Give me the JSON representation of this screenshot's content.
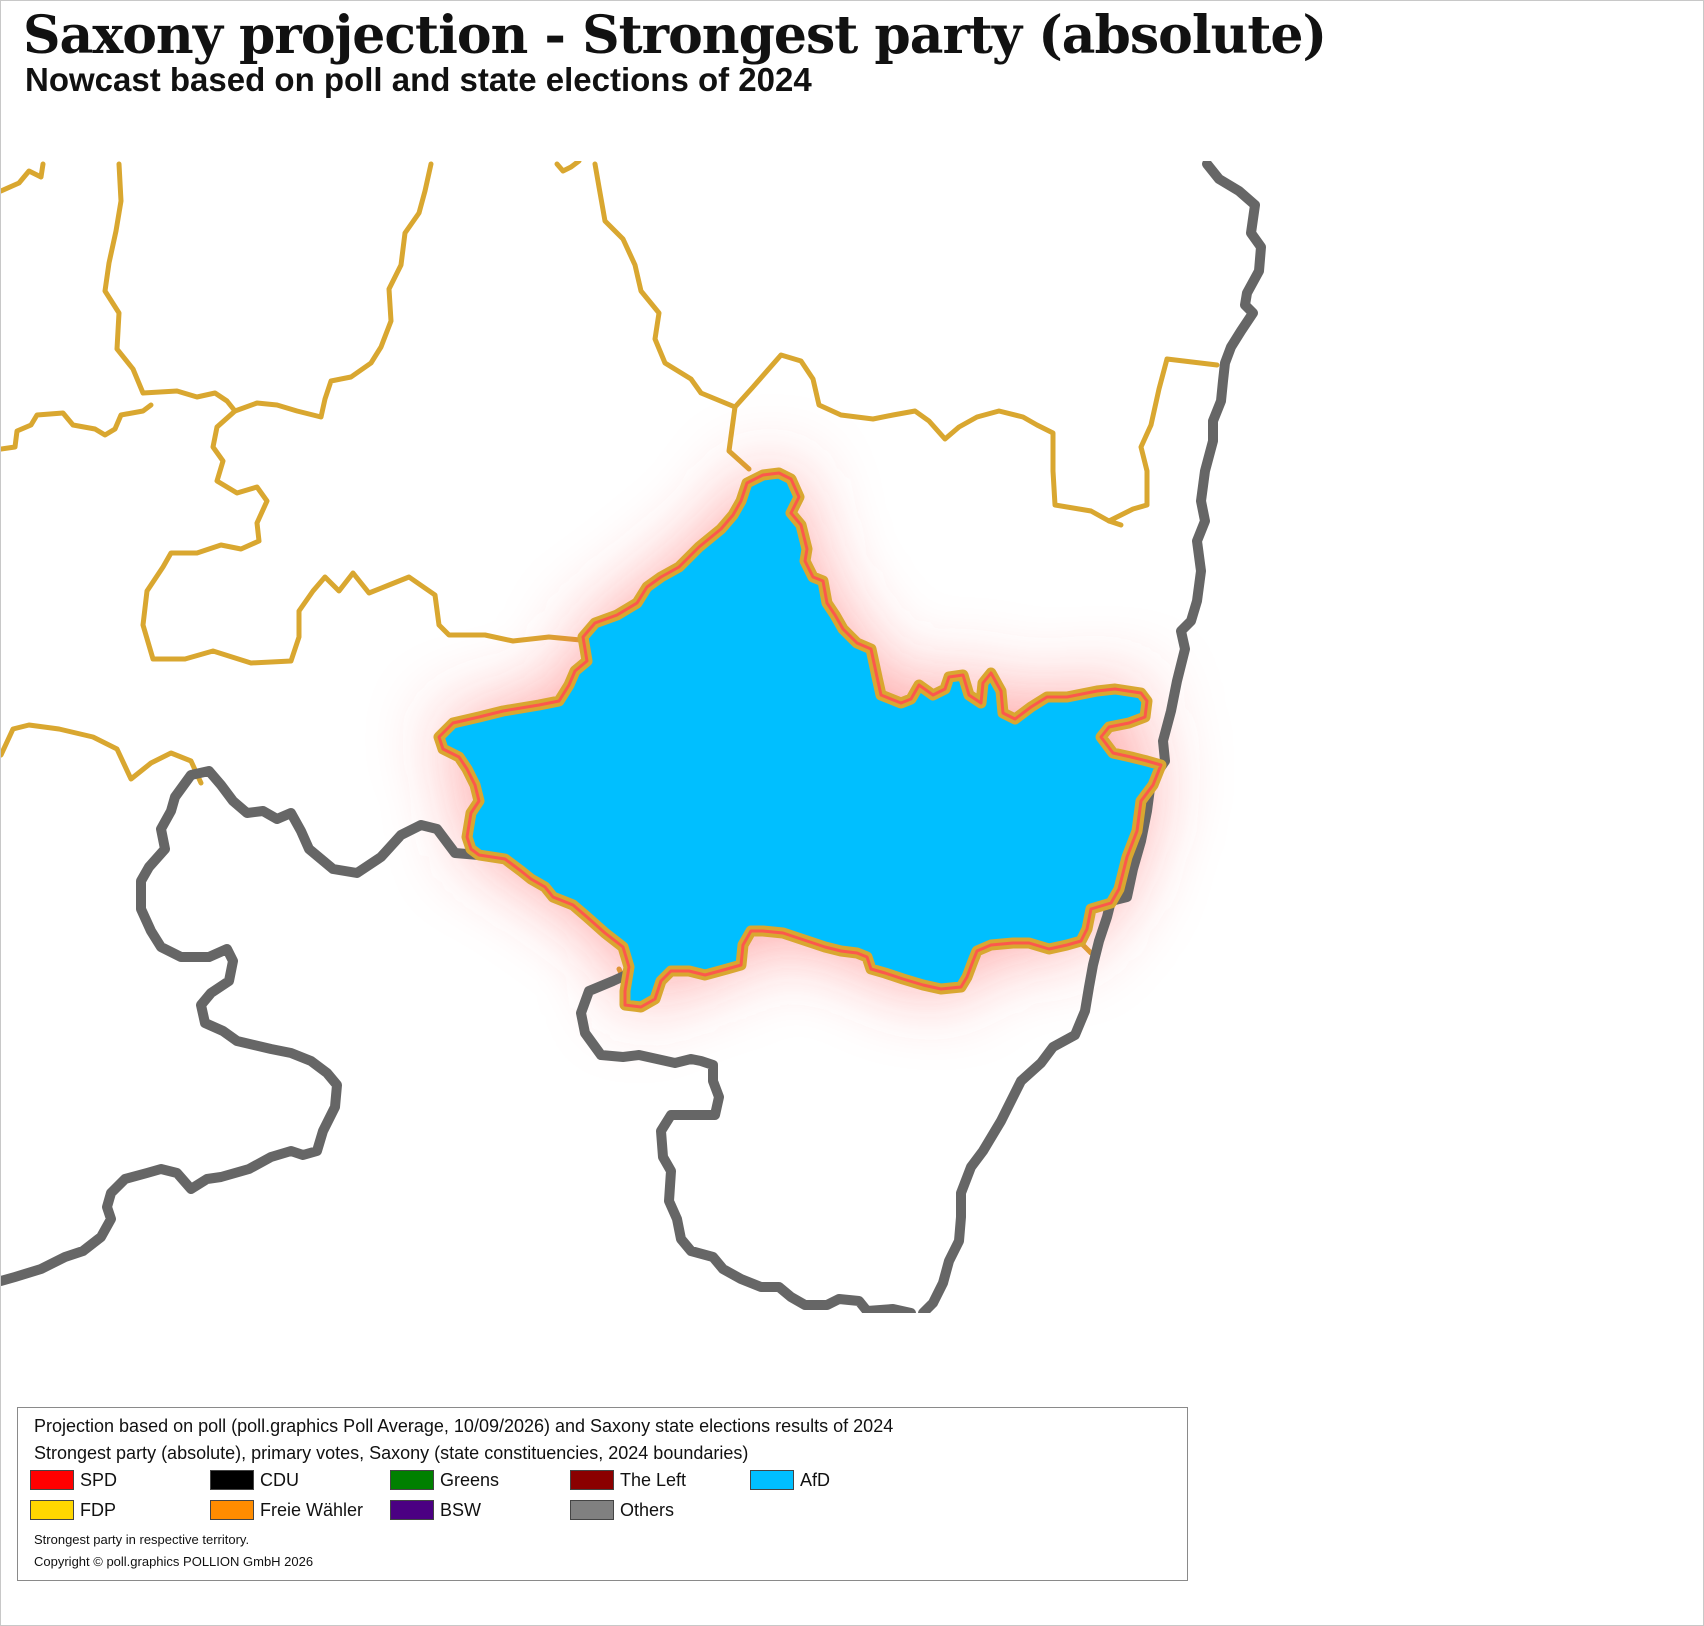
{
  "header": {
    "title": "Saxony projection - Strongest party (absolute)",
    "subtitle": "Nowcast based on poll and state elections of 2024"
  },
  "map": {
    "highlighted_region_party": "AfD",
    "highlighted_region_fill": "#00BFFF",
    "highlight_glow_color": "#FF4B4B",
    "constituency_border_color": "#D9A730",
    "state_border_color": "#666666"
  },
  "legend": {
    "source_line": "Projection based on poll (poll.graphics Poll Average, 10/09/2026) and Saxony state elections results of 2024",
    "description_line": "Strongest party (absolute), primary votes, Saxony (state constituencies, 2024 boundaries)",
    "entries": [
      {
        "label": "SPD",
        "color": "#FF0000"
      },
      {
        "label": "CDU",
        "color": "#000000"
      },
      {
        "label": "Greens",
        "color": "#008000"
      },
      {
        "label": "The Left",
        "color": "#8B0000"
      },
      {
        "label": "AfD",
        "color": "#00BFFF"
      },
      {
        "label": "FDP",
        "color": "#FFD700"
      },
      {
        "label": "Freie Wähler",
        "color": "#FF8C00"
      },
      {
        "label": "BSW",
        "color": "#4B0082"
      },
      {
        "label": "Others",
        "color": "#808080"
      }
    ],
    "note": "Strongest party in respective territory.",
    "copyright": "Copyright © poll.graphics POLLION GmbH 2026"
  }
}
